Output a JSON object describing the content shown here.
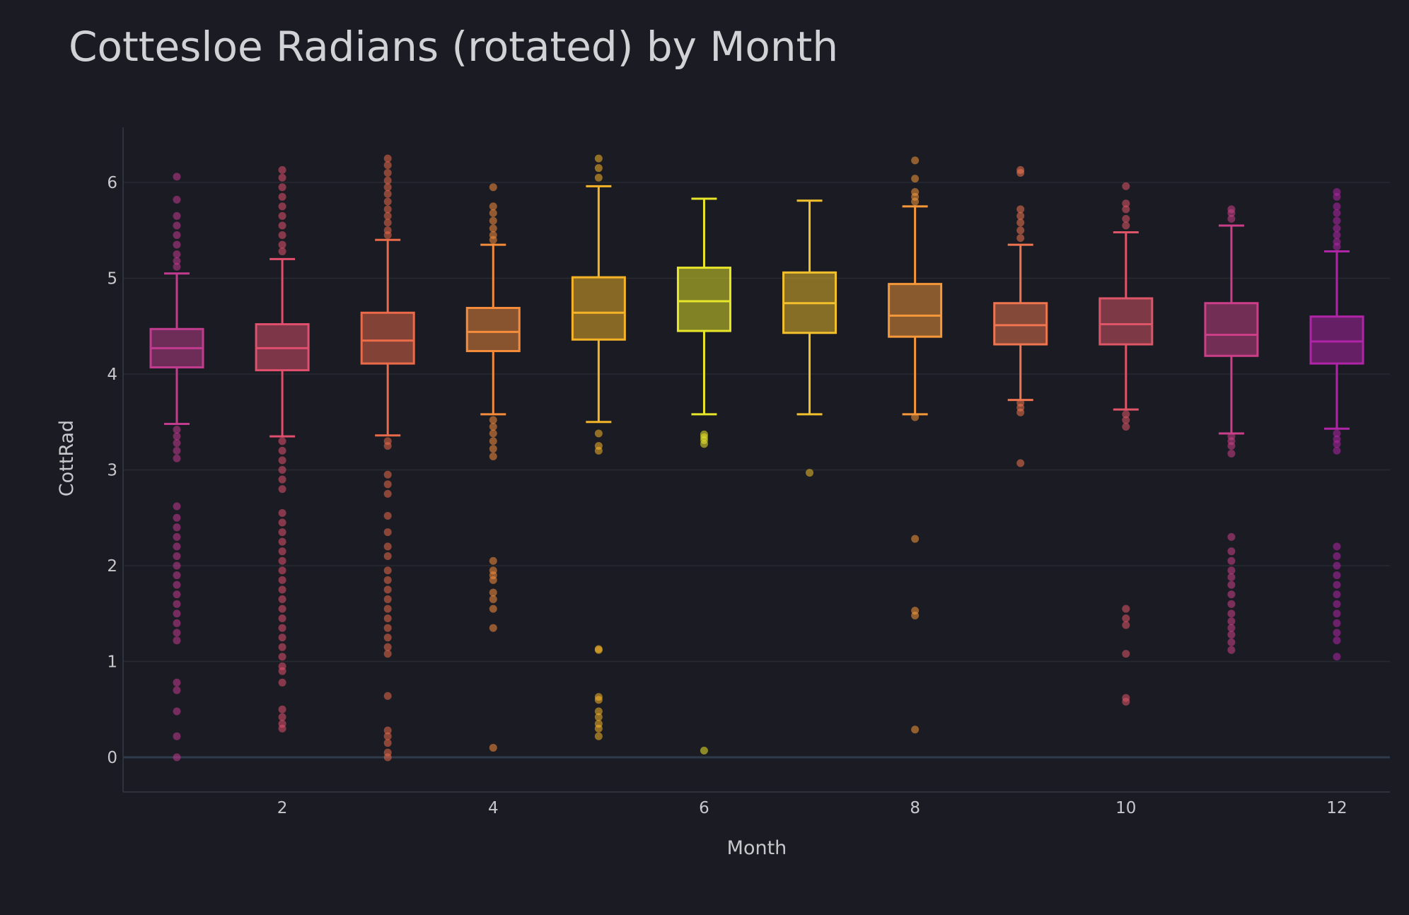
{
  "chart_data": {
    "type": "box",
    "title": "Cottesloe Radians (rotated) by Month",
    "xlabel": "Month",
    "ylabel": "CottRad",
    "xlim": [
      0.5,
      12.5
    ],
    "ylim": [
      -0.35,
      6.6
    ],
    "x_ticks": [
      2,
      4,
      6,
      8,
      10,
      12
    ],
    "y_ticks": [
      0,
      1,
      2,
      3,
      4,
      5,
      6
    ],
    "grid": true,
    "legend": "none",
    "categories": [
      1,
      2,
      3,
      4,
      5,
      6,
      7,
      8,
      9,
      10,
      11,
      12
    ],
    "boxes": [
      {
        "month": 1,
        "lower_fence": 3.48,
        "q1": 4.07,
        "median": 4.27,
        "q3": 4.47,
        "upper_fence": 5.05,
        "color": "#c13b8f",
        "outliers": [
          6.06,
          5.82,
          5.65,
          5.55,
          5.45,
          5.35,
          5.25,
          5.18,
          5.12,
          3.42,
          3.35,
          3.28,
          3.2,
          3.12,
          2.62,
          2.5,
          2.4,
          2.3,
          2.2,
          2.1,
          2.0,
          1.9,
          1.8,
          1.7,
          1.6,
          1.5,
          1.4,
          1.3,
          1.22,
          0.78,
          0.7,
          0.48,
          0.22,
          0.0
        ]
      },
      {
        "month": 2,
        "lower_fence": 3.35,
        "q1": 4.04,
        "median": 4.27,
        "q3": 4.52,
        "upper_fence": 5.2,
        "color": "#e0506e",
        "outliers": [
          6.13,
          6.05,
          5.95,
          5.85,
          5.75,
          5.65,
          5.55,
          5.45,
          5.35,
          5.28,
          3.3,
          3.2,
          3.1,
          3.0,
          2.9,
          2.8,
          2.55,
          2.45,
          2.35,
          2.25,
          2.15,
          2.05,
          1.95,
          1.85,
          1.75,
          1.65,
          1.55,
          1.45,
          1.35,
          1.25,
          1.15,
          1.05,
          0.95,
          0.9,
          0.78,
          0.5,
          0.42,
          0.35,
          0.3
        ]
      },
      {
        "month": 3,
        "lower_fence": 3.36,
        "q1": 4.11,
        "median": 4.35,
        "q3": 4.64,
        "upper_fence": 5.4,
        "color": "#ea6a4a",
        "outliers": [
          6.25,
          6.18,
          6.1,
          6.02,
          5.95,
          5.88,
          5.8,
          5.72,
          5.65,
          5.58,
          5.5,
          5.45,
          3.3,
          3.25,
          2.95,
          2.85,
          2.75,
          2.52,
          2.35,
          2.2,
          2.1,
          1.95,
          1.85,
          1.75,
          1.65,
          1.55,
          1.45,
          1.35,
          1.25,
          1.15,
          1.08,
          0.64,
          0.28,
          0.22,
          0.15,
          0.05,
          0.0
        ]
      },
      {
        "month": 4,
        "lower_fence": 3.58,
        "q1": 4.24,
        "median": 4.44,
        "q3": 4.69,
        "upper_fence": 5.35,
        "color": "#f58c3c",
        "outliers": [
          5.95,
          5.75,
          5.68,
          5.6,
          5.52,
          5.45,
          5.4,
          3.52,
          3.45,
          3.38,
          3.3,
          3.22,
          3.14,
          2.05,
          1.95,
          1.9,
          1.85,
          1.72,
          1.65,
          1.55,
          1.35,
          0.1
        ]
      },
      {
        "month": 5,
        "lower_fence": 3.5,
        "q1": 4.36,
        "median": 4.64,
        "q3": 5.01,
        "upper_fence": 5.96,
        "color": "#f5b428",
        "outliers": [
          6.25,
          6.15,
          6.05,
          3.38,
          3.25,
          3.2,
          1.13,
          1.12,
          0.63,
          0.6,
          0.48,
          0.42,
          0.35,
          0.3,
          0.22
        ]
      },
      {
        "month": 6,
        "lower_fence": 3.58,
        "q1": 4.45,
        "median": 4.76,
        "q3": 5.11,
        "upper_fence": 5.83,
        "color": "#e8e62a",
        "outliers": [
          3.37,
          3.34,
          3.31,
          3.27,
          0.07
        ]
      },
      {
        "month": 7,
        "lower_fence": 3.58,
        "q1": 4.43,
        "median": 4.74,
        "q3": 5.06,
        "upper_fence": 5.81,
        "color": "#f2c02c",
        "outliers": [
          2.97
        ]
      },
      {
        "month": 8,
        "lower_fence": 3.58,
        "q1": 4.39,
        "median": 4.61,
        "q3": 4.94,
        "upper_fence": 5.75,
        "color": "#f5983a",
        "outliers": [
          6.23,
          6.04,
          5.9,
          5.85,
          5.8,
          3.55,
          2.28,
          1.53,
          1.48,
          0.29
        ]
      },
      {
        "month": 9,
        "lower_fence": 3.73,
        "q1": 4.31,
        "median": 4.51,
        "q3": 4.74,
        "upper_fence": 5.35,
        "color": "#ef7550",
        "outliers": [
          6.13,
          6.1,
          5.72,
          5.65,
          5.58,
          5.5,
          5.42,
          3.7,
          3.65,
          3.6,
          3.07
        ]
      },
      {
        "month": 10,
        "lower_fence": 3.63,
        "q1": 4.31,
        "median": 4.52,
        "q3": 4.79,
        "upper_fence": 5.48,
        "color": "#df5568",
        "outliers": [
          5.96,
          5.78,
          5.72,
          5.62,
          5.55,
          3.58,
          3.52,
          3.45,
          1.55,
          1.45,
          1.38,
          1.08,
          0.62,
          0.58
        ]
      },
      {
        "month": 11,
        "lower_fence": 3.38,
        "q1": 4.19,
        "median": 4.41,
        "q3": 4.74,
        "upper_fence": 5.55,
        "color": "#ca3f88",
        "outliers": [
          5.72,
          5.68,
          5.62,
          3.35,
          3.3,
          3.25,
          3.17,
          2.3,
          2.15,
          2.05,
          1.95,
          1.88,
          1.8,
          1.7,
          1.6,
          1.5,
          1.42,
          1.35,
          1.28,
          1.2,
          1.12
        ]
      },
      {
        "month": 12,
        "lower_fence": 3.43,
        "q1": 4.11,
        "median": 4.34,
        "q3": 4.6,
        "upper_fence": 5.28,
        "color": "#b024a8",
        "outliers": [
          5.9,
          5.85,
          5.75,
          5.68,
          5.6,
          5.52,
          5.45,
          5.38,
          5.33,
          3.38,
          3.32,
          3.27,
          3.2,
          2.2,
          2.1,
          2.0,
          1.9,
          1.8,
          1.7,
          1.6,
          1.5,
          1.4,
          1.3,
          1.22,
          1.05
        ]
      }
    ]
  }
}
